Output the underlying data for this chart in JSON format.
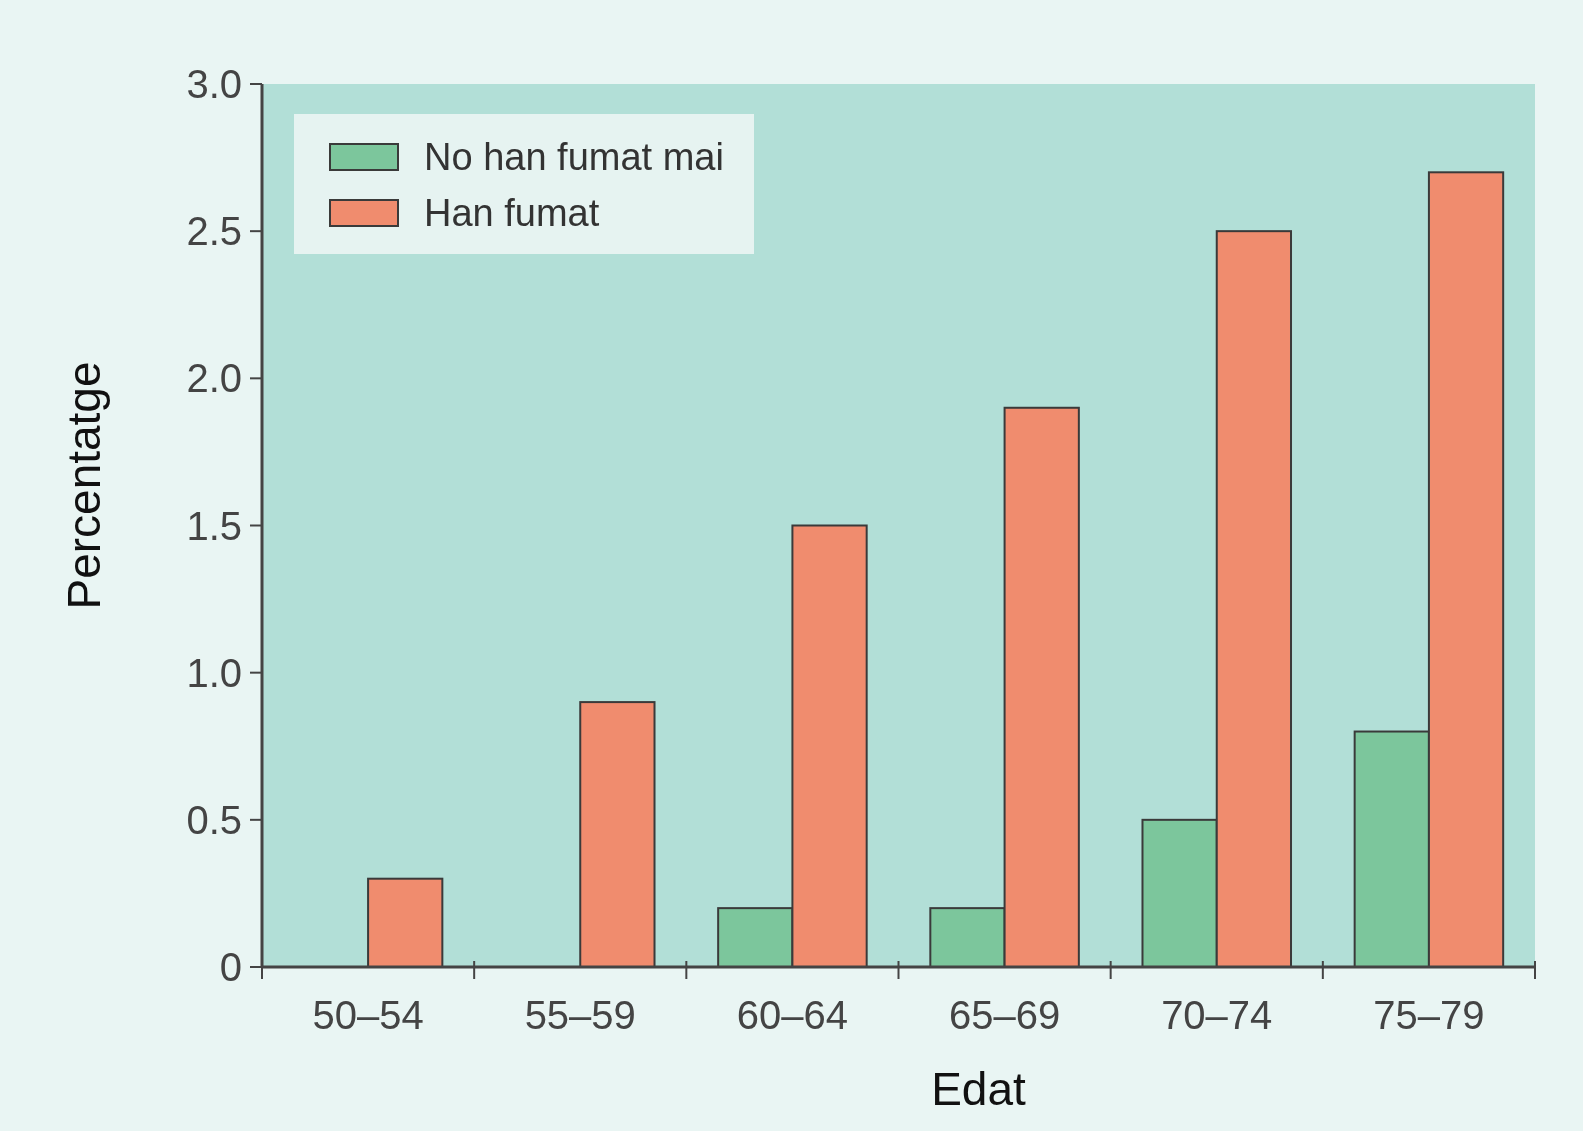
{
  "chart_data": {
    "type": "bar",
    "xlabel": "Edat",
    "ylabel": "Percentatge",
    "categories": [
      "50–54",
      "55–59",
      "60–64",
      "65–69",
      "70–74",
      "75–79"
    ],
    "series": [
      {
        "name": "No han fumat mai",
        "color": "#7cc69c",
        "values": [
          0,
          0,
          0.2,
          0.2,
          0.5,
          0.8
        ]
      },
      {
        "name": "Han fumat",
        "color": "#f08c6e",
        "values": [
          0.3,
          0.9,
          1.5,
          1.9,
          2.5,
          2.7
        ]
      }
    ],
    "ylim": [
      0,
      3
    ],
    "yticks": [
      0,
      0.5,
      {
        "value": 1,
        "label": "1.0"
      },
      1.5,
      {
        "value": 2,
        "label": "2.0"
      },
      2.5,
      {
        "value": 3,
        "label": "3.0"
      }
    ],
    "legend": "top left"
  }
}
